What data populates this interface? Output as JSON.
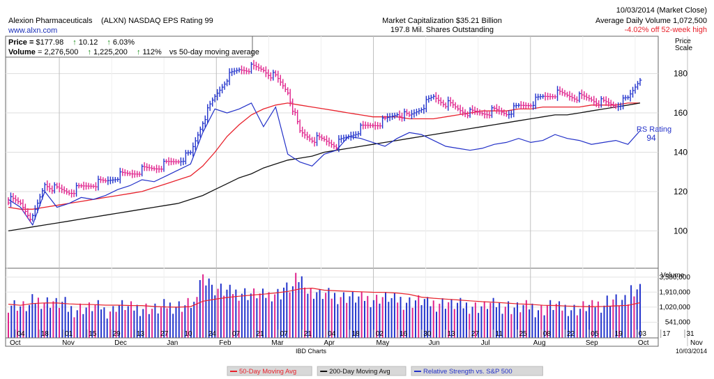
{
  "header": {
    "company": "Alexion Pharmaceuticals",
    "ticker_line": "(ALXN) NASDAQ EPS Rating 99",
    "website": "www.alxn.com",
    "market_cap": "Market Capitalization $35.21 Billion",
    "shares_outstanding": "197.8 Mil. Shares Outstanding",
    "date": "10/03/2014 (Market Close)",
    "avg_volume": "Average Daily Volume 1,072,500",
    "off_high": "-4.02% off 52-week high"
  },
  "info_box": {
    "price_label": "Price = ",
    "price_value": "$177.98",
    "price_change": "10.12",
    "price_change_pct": "6.03%",
    "volume_label": "Volume",
    "volume_value": " = 2,276,500",
    "volume_change": "1,225,200",
    "volume_change_pct": "112%",
    "volume_suffix": "vs 50-day moving average"
  },
  "price_axis": {
    "title_line1": "Price",
    "title_line2": "Scale",
    "ticks": [
      100,
      120,
      140,
      160,
      180
    ],
    "min": 81,
    "max": 199
  },
  "volume_axis": {
    "title": "Volume",
    "ticks": [
      {
        "label": "3,580,000",
        "value": 3580000
      },
      {
        "label": "1,910,000",
        "value": 1910000
      },
      {
        "label": "1,020,000",
        "value": 1020000
      },
      {
        "label": "541,000",
        "value": 541000
      }
    ],
    "min": 280000,
    "max": 5200000,
    "scale": "log"
  },
  "rs_label": {
    "title": "RS Rating",
    "value": "94"
  },
  "x_axis": {
    "day_labels": [
      "04",
      "18",
      "01",
      "15",
      "29",
      "13",
      "27",
      "10",
      "24",
      "07",
      "21",
      "07",
      "21",
      "04",
      "18",
      "02",
      "16",
      "30",
      "13",
      "27",
      "11",
      "25",
      "08",
      "22",
      "05",
      "19",
      "03",
      "17",
      "31"
    ],
    "month_labels": [
      "Oct",
      "Nov",
      "Dec",
      "Jan",
      "Feb",
      "Mar",
      "Apr",
      "May",
      "Jun",
      "Jul",
      "Aug",
      "Sep",
      "Oct",
      "Nov"
    ]
  },
  "footer": {
    "source": "IBD Charts",
    "date": "10/03/2014",
    "legend": [
      {
        "name": "50-Day Moving Avg",
        "color": "#e8212b"
      },
      {
        "name": "200-Day Moving Avg",
        "color": "#111111"
      },
      {
        "name": "Relative Strength vs. S&P 500",
        "color": "#2230c8"
      }
    ]
  },
  "colors": {
    "up_bar": "#2233cc",
    "down_bar": "#e0238c",
    "ma50": "#e8212b",
    "ma200": "#111111",
    "rs_line": "#2230c8",
    "gain": "#138a13",
    "loss": "#e8212b"
  },
  "chart_data": {
    "type": "line",
    "title": "",
    "x_unit": "week ending",
    "weeks": [
      "2013-10-04",
      "2013-10-11",
      "2013-10-18",
      "2013-10-25",
      "2013-11-01",
      "2013-11-08",
      "2013-11-15",
      "2013-11-22",
      "2013-11-29",
      "2013-12-06",
      "2013-12-13",
      "2013-12-20",
      "2013-12-27",
      "2014-01-03",
      "2014-01-10",
      "2014-01-17",
      "2014-01-24",
      "2014-01-31",
      "2014-02-07",
      "2014-02-14",
      "2014-02-21",
      "2014-02-28",
      "2014-03-07",
      "2014-03-14",
      "2014-03-21",
      "2014-03-28",
      "2014-04-04",
      "2014-04-11",
      "2014-04-18",
      "2014-04-25",
      "2014-05-02",
      "2014-05-09",
      "2014-05-16",
      "2014-05-23",
      "2014-05-30",
      "2014-06-06",
      "2014-06-13",
      "2014-06-20",
      "2014-06-27",
      "2014-07-04",
      "2014-07-11",
      "2014-07-18",
      "2014-07-25",
      "2014-08-01",
      "2014-08-08",
      "2014-08-15",
      "2014-08-22",
      "2014-08-29",
      "2014-09-05",
      "2014-09-12",
      "2014-09-19",
      "2014-09-26",
      "2014-10-03"
    ],
    "series": [
      {
        "name": "50-Day Moving Avg",
        "values": [
          112,
          111,
          111,
          112,
          113,
          114,
          115,
          116,
          117,
          118,
          119,
          120,
          122,
          124,
          126,
          128,
          133,
          140,
          148,
          154,
          159,
          162,
          164,
          165,
          164,
          163,
          162,
          161,
          160,
          159,
          158,
          158,
          158,
          157,
          157,
          157,
          158,
          159,
          160,
          161,
          161,
          161,
          162,
          162,
          163,
          163,
          163,
          163,
          164,
          164,
          164,
          165,
          165
        ]
      },
      {
        "name": "200-Day Moving Avg",
        "values": [
          100,
          101,
          102,
          103,
          104,
          105,
          106,
          107,
          108,
          109,
          110,
          111,
          112,
          113,
          114,
          116,
          118,
          121,
          124,
          127,
          129,
          132,
          134,
          136,
          137,
          138,
          140,
          141,
          142,
          143,
          144,
          145,
          146,
          147,
          148,
          149,
          150,
          151,
          152,
          153,
          154,
          155,
          156,
          157,
          158,
          159,
          159,
          160,
          161,
          162,
          163,
          164,
          165
        ]
      },
      {
        "name": "Relative Strength vs. S&P 500",
        "values": [
          116,
          112,
          103,
          120,
          112,
          114,
          117,
          116,
          118,
          121,
          123,
          126,
          125,
          128,
          131,
          134,
          150,
          162,
          160,
          162,
          165,
          153,
          163,
          139,
          135,
          133,
          139,
          141,
          148,
          147,
          145,
          143,
          147,
          150,
          149,
          146,
          143,
          142,
          141,
          142,
          144,
          145,
          147,
          145,
          146,
          149,
          147,
          146,
          144,
          145,
          146,
          144,
          151
        ]
      }
    ],
    "weekly_close": [
      116,
      114,
      106,
      124,
      121,
      120,
      122,
      124,
      125,
      128,
      129,
      131,
      132,
      134,
      136,
      139,
      156,
      168,
      178,
      182,
      183,
      182,
      178,
      171,
      150,
      147,
      146,
      144,
      148,
      152,
      154,
      156,
      160,
      158,
      163,
      168,
      165,
      162,
      160,
      160,
      161,
      160,
      163,
      165,
      168,
      170,
      169,
      168,
      167,
      165,
      164,
      167,
      178
    ],
    "weekly_volume": [
      1150000,
      1050000,
      1350000,
      1300000,
      1200000,
      950000,
      1000000,
      1050000,
      900000,
      1100000,
      1000000,
      1000000,
      950000,
      1100000,
      1100000,
      1200000,
      3600000,
      2200000,
      2000000,
      1900000,
      1800000,
      1700000,
      1850000,
      2300000,
      3300000,
      1900000,
      1750000,
      1650000,
      1600000,
      1500000,
      1450000,
      1550000,
      1400000,
      1300000,
      1350000,
      1200000,
      1250000,
      1150000,
      1100000,
      1050000,
      1150000,
      1100000,
      1000000,
      1050000,
      950000,
      1100000,
      1000000,
      950000,
      1050000,
      1150000,
      1400000,
      1300000,
      2276500
    ]
  }
}
